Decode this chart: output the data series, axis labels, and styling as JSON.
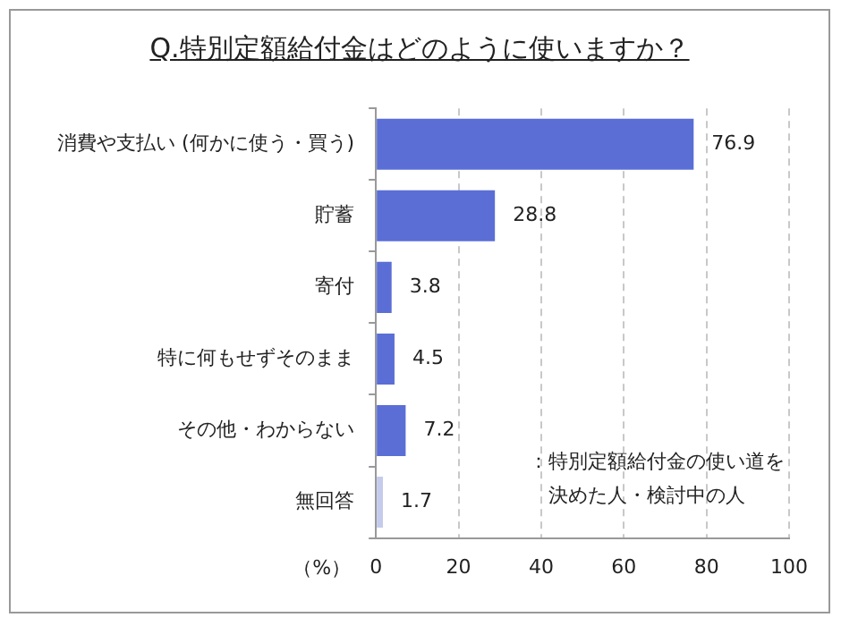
{
  "chart_data": {
    "type": "bar",
    "orientation": "horizontal",
    "title": "Q.特別定額給付金はどのように使いますか？",
    "xlabel": "（%）",
    "categories": [
      "消費や支払い (何かに使う・買う)",
      "貯蓄",
      "寄付",
      "特に何もせずそのまま",
      "その他・わからない",
      "無回答"
    ],
    "values": [
      76.9,
      28.8,
      3.8,
      4.5,
      7.2,
      1.7
    ],
    "colors": [
      "#5a6ed6",
      "#5a6ed6",
      "#5a6ed6",
      "#5a6ed6",
      "#5a6ed6",
      "#c5cbeb"
    ],
    "xlim": [
      0,
      100
    ],
    "xticks": [
      0,
      20,
      40,
      60,
      80,
      100
    ],
    "grid": "x",
    "data_labels": true,
    "legend": false,
    "annotations": [
      "：特別定額給付金の使い道を決めた人・検討中の人"
    ]
  }
}
